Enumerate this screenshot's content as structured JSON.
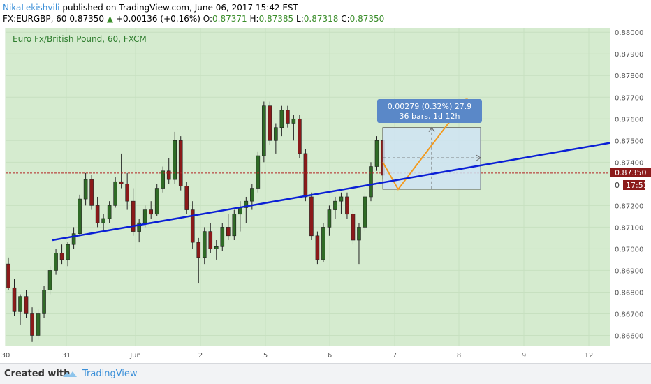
{
  "header": {
    "author": "NikaLekishvili",
    "published": " published on TradingView.com, June 06, 2017 15:42 EST",
    "symbol": "FX:EURGBP, 60",
    "last": "0.87350",
    "up_arrow": "▲",
    "change": "+0.00136 (+0.16%)",
    "o_label": "O:",
    "o_val": "0.87371",
    "h_label": "H:",
    "h_val": "0.87385",
    "l_label": "L:",
    "l_val": "0.87318",
    "c_label": "C:",
    "c_val": "0.87350"
  },
  "chart_data": {
    "type": "candlestick",
    "title": "Euro Fx/British Pound, 60, FXCM",
    "ylim": [
      0.8655,
      0.8802
    ],
    "y_ticks": [
      "0.88000",
      "0.87900",
      "0.87800",
      "0.87700",
      "0.87600",
      "0.87500",
      "0.87400",
      "0.87200",
      "0.87100",
      "0.87000",
      "0.86900",
      "0.86800",
      "0.86700",
      "0.86600"
    ],
    "x_ticks": [
      "30",
      "31",
      "Jun",
      "2",
      "5",
      "6",
      "7",
      "8",
      "9",
      "12"
    ],
    "price_line": 0.8735,
    "price_label": "0.87350",
    "countdown_label": "17:51",
    "countdown_prefix": "0",
    "trendline": {
      "start": [
        "31",
        0.8704
      ],
      "end": [
        "9",
        0.8742
      ]
    },
    "measure": {
      "text1": "0.00279 (0.32%) 27.9",
      "text2": "36 bars, 1d 12h"
    },
    "candles": [
      [
        0.8693,
        0.8696,
        0.8681,
        0.8682
      ],
      [
        0.8682,
        0.8686,
        0.8669,
        0.8671
      ],
      [
        0.8671,
        0.8679,
        0.8665,
        0.8678
      ],
      [
        0.8678,
        0.8681,
        0.8668,
        0.867
      ],
      [
        0.867,
        0.8673,
        0.8657,
        0.866
      ],
      [
        0.866,
        0.8672,
        0.8658,
        0.867
      ],
      [
        0.867,
        0.8683,
        0.8668,
        0.8681
      ],
      [
        0.8681,
        0.8692,
        0.8679,
        0.869
      ],
      [
        0.869,
        0.87,
        0.8688,
        0.8698
      ],
      [
        0.8698,
        0.8702,
        0.8693,
        0.8695
      ],
      [
        0.8695,
        0.8703,
        0.8692,
        0.8702
      ],
      [
        0.8702,
        0.871,
        0.87,
        0.8707
      ],
      [
        0.8707,
        0.8725,
        0.8706,
        0.8723
      ],
      [
        0.8723,
        0.8735,
        0.872,
        0.8732
      ],
      [
        0.8732,
        0.8734,
        0.8718,
        0.872
      ],
      [
        0.872,
        0.8724,
        0.871,
        0.8712
      ],
      [
        0.8712,
        0.8716,
        0.8708,
        0.8714
      ],
      [
        0.8714,
        0.8722,
        0.8712,
        0.872
      ],
      [
        0.872,
        0.8733,
        0.8719,
        0.8731
      ],
      [
        0.8731,
        0.8744,
        0.8728,
        0.873
      ],
      [
        0.873,
        0.8735,
        0.8718,
        0.8722
      ],
      [
        0.8722,
        0.8728,
        0.8706,
        0.8708
      ],
      [
        0.8708,
        0.8714,
        0.8703,
        0.8712
      ],
      [
        0.8712,
        0.872,
        0.871,
        0.8718
      ],
      [
        0.8718,
        0.8722,
        0.8714,
        0.8716
      ],
      [
        0.8716,
        0.873,
        0.8715,
        0.8728
      ],
      [
        0.8728,
        0.8738,
        0.8726,
        0.8736
      ],
      [
        0.8736,
        0.8742,
        0.873,
        0.8732
      ],
      [
        0.8732,
        0.8754,
        0.873,
        0.875
      ],
      [
        0.875,
        0.8752,
        0.8727,
        0.8729
      ],
      [
        0.8729,
        0.8731,
        0.8716,
        0.8718
      ],
      [
        0.8718,
        0.8722,
        0.87,
        0.8703
      ],
      [
        0.8703,
        0.8705,
        0.8684,
        0.8696
      ],
      [
        0.8696,
        0.871,
        0.8693,
        0.8708
      ],
      [
        0.8708,
        0.8712,
        0.8698,
        0.87
      ],
      [
        0.87,
        0.8704,
        0.8695,
        0.8701
      ],
      [
        0.8701,
        0.8712,
        0.8699,
        0.871
      ],
      [
        0.871,
        0.8716,
        0.8704,
        0.8706
      ],
      [
        0.8706,
        0.8718,
        0.8704,
        0.8716
      ],
      [
        0.8716,
        0.8722,
        0.8708,
        0.8719
      ],
      [
        0.8719,
        0.8724,
        0.8712,
        0.8722
      ],
      [
        0.8722,
        0.873,
        0.8718,
        0.8728
      ],
      [
        0.8728,
        0.8745,
        0.8726,
        0.8743
      ],
      [
        0.8743,
        0.8768,
        0.874,
        0.8766
      ],
      [
        0.8766,
        0.8768,
        0.8748,
        0.875
      ],
      [
        0.875,
        0.8758,
        0.8744,
        0.8756
      ],
      [
        0.8756,
        0.8766,
        0.8752,
        0.8764
      ],
      [
        0.8764,
        0.8766,
        0.8756,
        0.8758
      ],
      [
        0.8758,
        0.8762,
        0.875,
        0.876
      ],
      [
        0.876,
        0.8762,
        0.8742,
        0.8744
      ],
      [
        0.8744,
        0.8746,
        0.8722,
        0.8724
      ],
      [
        0.8724,
        0.8726,
        0.8704,
        0.8706
      ],
      [
        0.8706,
        0.8708,
        0.8693,
        0.8695
      ],
      [
        0.8695,
        0.8712,
        0.8694,
        0.871
      ],
      [
        0.871,
        0.872,
        0.8706,
        0.8718
      ],
      [
        0.8718,
        0.8724,
        0.8714,
        0.8722
      ],
      [
        0.8722,
        0.8726,
        0.8716,
        0.8724
      ],
      [
        0.8724,
        0.8726,
        0.8714,
        0.8716
      ],
      [
        0.8716,
        0.8718,
        0.8702,
        0.8704
      ],
      [
        0.8704,
        0.8712,
        0.8693,
        0.871
      ],
      [
        0.871,
        0.8726,
        0.8708,
        0.8724
      ],
      [
        0.8724,
        0.874,
        0.8722,
        0.8738
      ],
      [
        0.8738,
        0.8752,
        0.8736,
        0.875
      ],
      [
        0.875,
        0.8756,
        0.8732,
        0.8734
      ]
    ]
  }
}
